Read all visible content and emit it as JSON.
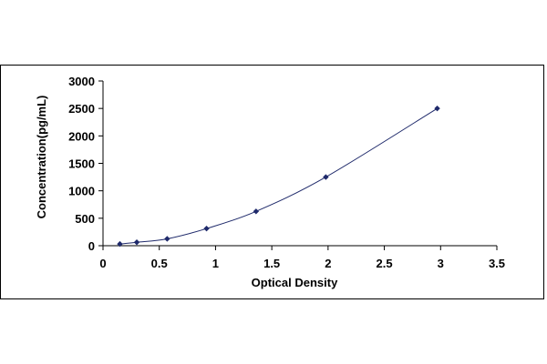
{
  "chart_data": {
    "type": "scatter",
    "title": "",
    "xlabel": "Optical Density",
    "ylabel": "Concentration(pg/mL)",
    "xlim": [
      0,
      3.5
    ],
    "ylim": [
      0,
      3000
    ],
    "x_ticks": [
      "0",
      "0.5",
      "1",
      "1.5",
      "2",
      "2.5",
      "3",
      "3.5"
    ],
    "y_ticks": [
      "0",
      "500",
      "1000",
      "1500",
      "2000",
      "2500",
      "3000"
    ],
    "grid": false,
    "legend": "none",
    "series": [
      {
        "x": [
          0.15,
          0.3,
          0.57,
          0.92,
          1.36,
          1.98,
          2.97
        ],
        "y": [
          31,
          62,
          125,
          312,
          625,
          1250,
          2500
        ]
      }
    ],
    "marker_color": "#1f2a6b",
    "line_color": "#1f2a6b"
  }
}
